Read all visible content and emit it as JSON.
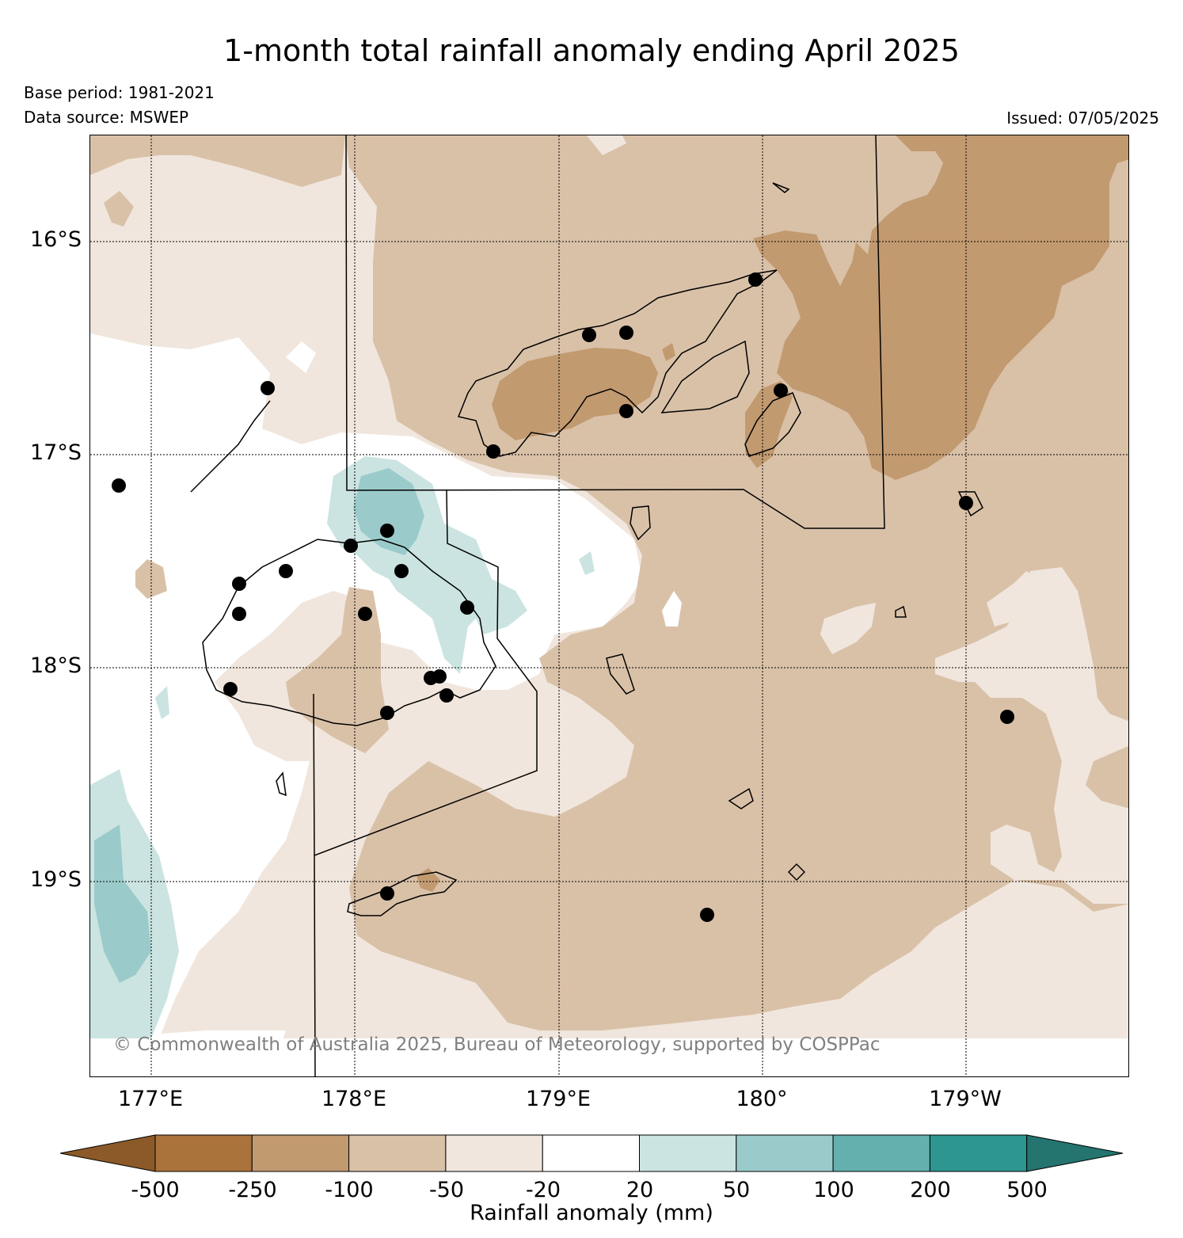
{
  "title": "1-month total rainfall anomaly ending April 2025",
  "base_period": "Base period: 1981-2021",
  "data_source": "Data source: MSWEP",
  "issued": "Issued: 07/05/2025",
  "copyright": "© Commonwealth of Australia 2025, Bureau of Meteorology, supported by COSPPac",
  "lat_ticks": [
    "16°S",
    "17°S",
    "18°S",
    "19°S"
  ],
  "lon_ticks": [
    "177°E",
    "178°E",
    "179°E",
    "180°",
    "179°W"
  ],
  "colorbar": {
    "title": "Rainfall anomaly (mm)",
    "labels": [
      "-500",
      "-250",
      "-100",
      "-50",
      "-20",
      "20",
      "50",
      "100",
      "200",
      "500"
    ],
    "colors": [
      "#8c5a28",
      "#ab733c",
      "#c29a70",
      "#d9c1a8",
      "#f0e6dd",
      "#ffffff",
      "#cbe4e2",
      "#9acbca",
      "#64b0af",
      "#2e9690",
      "#24746f"
    ]
  },
  "map": {
    "colors": {
      "dry_100": "#c29a70",
      "dry_50": "#d9c1a8",
      "dry_20": "#f0e6dd",
      "neutral": "#ffffff",
      "wet_20": "#cbe4e2",
      "wet_50": "#9acbca"
    },
    "station_count": 26
  }
}
